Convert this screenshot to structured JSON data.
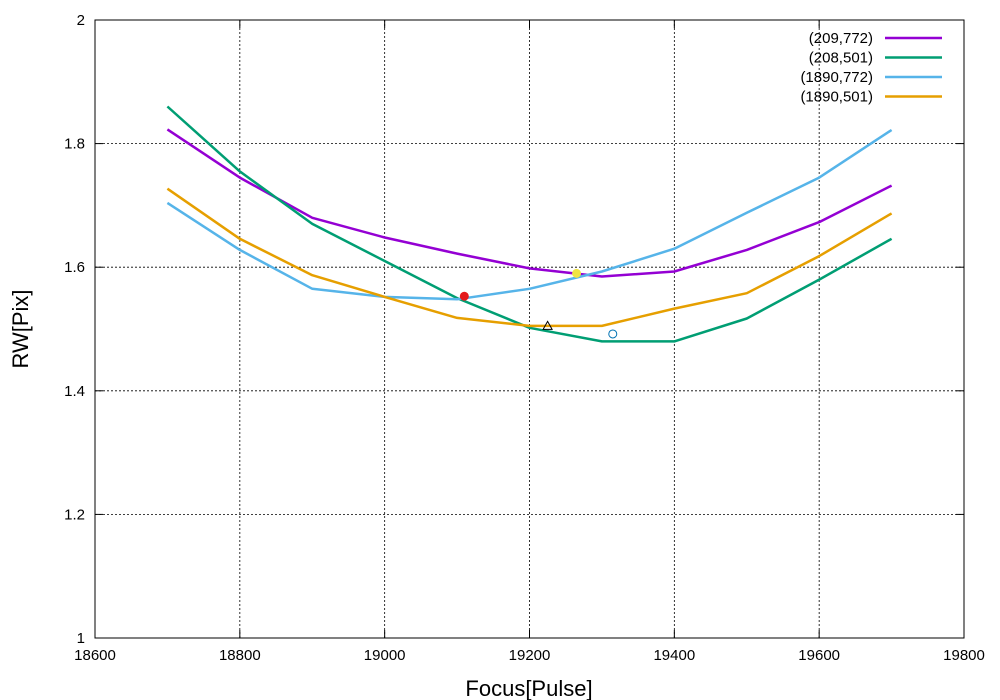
{
  "chart_data": {
    "type": "line",
    "xlabel": "Focus[Pulse]",
    "ylabel": "RW[Pix]",
    "xlim": [
      18600,
      19800
    ],
    "ylim": [
      1.0,
      2.0
    ],
    "xticks": [
      18600,
      18800,
      19000,
      19200,
      19400,
      19600,
      19800
    ],
    "yticks": [
      1.0,
      1.2,
      1.4,
      1.6,
      1.8,
      2.0
    ],
    "xtick_labels": [
      "18600",
      "18800",
      "19000",
      "19200",
      "19400",
      "19600",
      "19800"
    ],
    "ytick_labels": [
      "1",
      "1.2",
      "1.4",
      "1.6",
      "1.8",
      "2"
    ],
    "grid": true,
    "legend_position": "top-right",
    "x": [
      18700,
      18800,
      18900,
      19000,
      19100,
      19200,
      19300,
      19400,
      19500,
      19600,
      19700
    ],
    "series": [
      {
        "name": "(209,772)",
        "color": "#9400d3",
        "values": [
          1.823,
          1.745,
          1.68,
          1.648,
          1.622,
          1.598,
          1.585,
          1.593,
          1.628,
          1.673,
          1.732
        ]
      },
      {
        "name": "(208,501)",
        "color": "#009e73",
        "values": [
          1.86,
          1.755,
          1.67,
          1.61,
          1.55,
          1.502,
          1.48,
          1.48,
          1.517,
          1.58,
          1.646
        ]
      },
      {
        "name": "(1890,772)",
        "color": "#56b4e9",
        "values": [
          1.704,
          1.628,
          1.565,
          1.552,
          1.548,
          1.565,
          1.593,
          1.63,
          1.688,
          1.745,
          1.822
        ]
      },
      {
        "name": "(1890,501)",
        "color": "#e69f00",
        "values": [
          1.727,
          1.646,
          1.587,
          1.552,
          1.518,
          1.505,
          1.505,
          1.533,
          1.558,
          1.618,
          1.687
        ]
      }
    ],
    "markers": [
      {
        "shape": "filled-circle",
        "color": "#e41a1c",
        "x": 19110,
        "y": 1.553
      },
      {
        "shape": "filled-circle",
        "color": "#f0e442",
        "x": 19265,
        "y": 1.59
      },
      {
        "shape": "open-triangle",
        "color": "#000000",
        "x": 19225,
        "y": 1.505
      },
      {
        "shape": "open-circle",
        "color": "#0072b2",
        "x": 19315,
        "y": 1.492
      }
    ]
  }
}
